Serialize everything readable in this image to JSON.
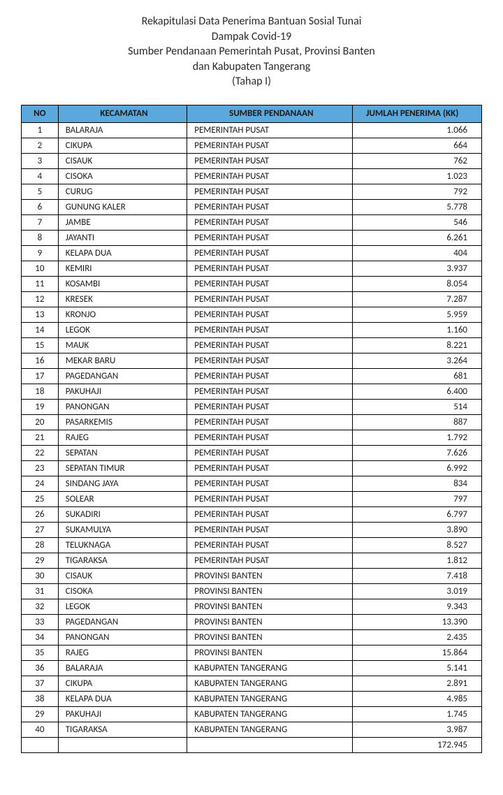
{
  "title_lines": [
    "Rekapitulasi Data Penerima Bantuan Sosial Tunai",
    "Dampak Covid-19",
    "Sumber Pendanaan Pemerintah Pusat, Provinsi Banten",
    "dan Kabupaten Tangerang",
    "(Tahap I)"
  ],
  "table": {
    "header_bg": "#5aa8dc",
    "columns": [
      "NO",
      "KECAMATAN",
      "SUMBER PENDANAAN",
      "JUMLAH PENERIMA (KK)"
    ],
    "rows": [
      {
        "no": "1",
        "kec": "BALARAJA",
        "sum": "PEMERINTAH PUSAT",
        "jml": "1.066"
      },
      {
        "no": "2",
        "kec": "CIKUPA",
        "sum": "PEMERINTAH PUSAT",
        "jml": "664"
      },
      {
        "no": "3",
        "kec": "CISAUK",
        "sum": "PEMERINTAH PUSAT",
        "jml": "762"
      },
      {
        "no": "4",
        "kec": "CISOKA",
        "sum": "PEMERINTAH PUSAT",
        "jml": "1.023"
      },
      {
        "no": "5",
        "kec": "CURUG",
        "sum": "PEMERINTAH PUSAT",
        "jml": "792"
      },
      {
        "no": "6",
        "kec": "GUNUNG KALER",
        "sum": "PEMERINTAH PUSAT",
        "jml": "5.778"
      },
      {
        "no": "7",
        "kec": "JAMBE",
        "sum": "PEMERINTAH PUSAT",
        "jml": "546"
      },
      {
        "no": "8",
        "kec": "JAYANTI",
        "sum": "PEMERINTAH PUSAT",
        "jml": "6.261"
      },
      {
        "no": "9",
        "kec": "KELAPA DUA",
        "sum": "PEMERINTAH PUSAT",
        "jml": "404"
      },
      {
        "no": "10",
        "kec": "KEMIRI",
        "sum": "PEMERINTAH PUSAT",
        "jml": "3.937"
      },
      {
        "no": "11",
        "kec": "KOSAMBI",
        "sum": "PEMERINTAH PUSAT",
        "jml": "8.054"
      },
      {
        "no": "12",
        "kec": "KRESEK",
        "sum": "PEMERINTAH PUSAT",
        "jml": "7.287"
      },
      {
        "no": "13",
        "kec": "KRONJO",
        "sum": "PEMERINTAH PUSAT",
        "jml": "5.959"
      },
      {
        "no": "14",
        "kec": "LEGOK",
        "sum": "PEMERINTAH PUSAT",
        "jml": "1.160"
      },
      {
        "no": "15",
        "kec": "MAUK",
        "sum": "PEMERINTAH PUSAT",
        "jml": "8.221"
      },
      {
        "no": "16",
        "kec": "MEKAR BARU",
        "sum": "PEMERINTAH PUSAT",
        "jml": "3.264"
      },
      {
        "no": "17",
        "kec": "PAGEDANGAN",
        "sum": "PEMERINTAH PUSAT",
        "jml": "681"
      },
      {
        "no": "18",
        "kec": "PAKUHAJI",
        "sum": "PEMERINTAH PUSAT",
        "jml": "6.400"
      },
      {
        "no": "19",
        "kec": "PANONGAN",
        "sum": "PEMERINTAH PUSAT",
        "jml": "514"
      },
      {
        "no": "20",
        "kec": "PASARKEMIS",
        "sum": "PEMERINTAH PUSAT",
        "jml": "887"
      },
      {
        "no": "21",
        "kec": "RAJEG",
        "sum": "PEMERINTAH PUSAT",
        "jml": "1.792"
      },
      {
        "no": "22",
        "kec": "SEPATAN",
        "sum": "PEMERINTAH PUSAT",
        "jml": "7.626"
      },
      {
        "no": "23",
        "kec": "SEPATAN TIMUR",
        "sum": "PEMERINTAH PUSAT",
        "jml": "6.992"
      },
      {
        "no": "24",
        "kec": "SINDANG JAYA",
        "sum": "PEMERINTAH PUSAT",
        "jml": "834"
      },
      {
        "no": "25",
        "kec": "SOLEAR",
        "sum": "PEMERINTAH PUSAT",
        "jml": "797"
      },
      {
        "no": "26",
        "kec": "SUKADIRI",
        "sum": "PEMERINTAH PUSAT",
        "jml": "6.797"
      },
      {
        "no": "27",
        "kec": "SUKAMULYA",
        "sum": "PEMERINTAH PUSAT",
        "jml": "3.890"
      },
      {
        "no": "28",
        "kec": "TELUKNAGA",
        "sum": "PEMERINTAH PUSAT",
        "jml": "8.527"
      },
      {
        "no": "29",
        "kec": "TIGARAKSA",
        "sum": "PEMERINTAH PUSAT",
        "jml": "1.812"
      },
      {
        "no": "30",
        "kec": "CISAUK",
        "sum": "PROVINSI BANTEN",
        "jml": "7.418"
      },
      {
        "no": "31",
        "kec": "CISOKA",
        "sum": "PROVINSI BANTEN",
        "jml": "3.019"
      },
      {
        "no": "32",
        "kec": "LEGOK",
        "sum": "PROVINSI BANTEN",
        "jml": "9.343"
      },
      {
        "no": "33",
        "kec": "PAGEDANGAN",
        "sum": "PROVINSI BANTEN",
        "jml": "13.390"
      },
      {
        "no": "34",
        "kec": "PANONGAN",
        "sum": "PROVINSI BANTEN",
        "jml": "2.435"
      },
      {
        "no": "35",
        "kec": "RAJEG",
        "sum": "PROVINSI BANTEN",
        "jml": "15.864"
      },
      {
        "no": "36",
        "kec": "BALARAJA",
        "sum": "KABUPATEN TANGERANG",
        "jml": "5.141"
      },
      {
        "no": "37",
        "kec": "CIKUPA",
        "sum": "KABUPATEN TANGERANG",
        "jml": "2.891"
      },
      {
        "no": "38",
        "kec": "KELAPA DUA",
        "sum": "KABUPATEN TANGERANG",
        "jml": "4.985"
      },
      {
        "no": "29",
        "kec": "PAKUHAJI",
        "sum": "KABUPATEN TANGERANG",
        "jml": "1.745"
      },
      {
        "no": "40",
        "kec": "TIGARAKSA",
        "sum": "KABUPATEN TANGERANG",
        "jml": "3.987"
      }
    ],
    "total": "172.945"
  }
}
